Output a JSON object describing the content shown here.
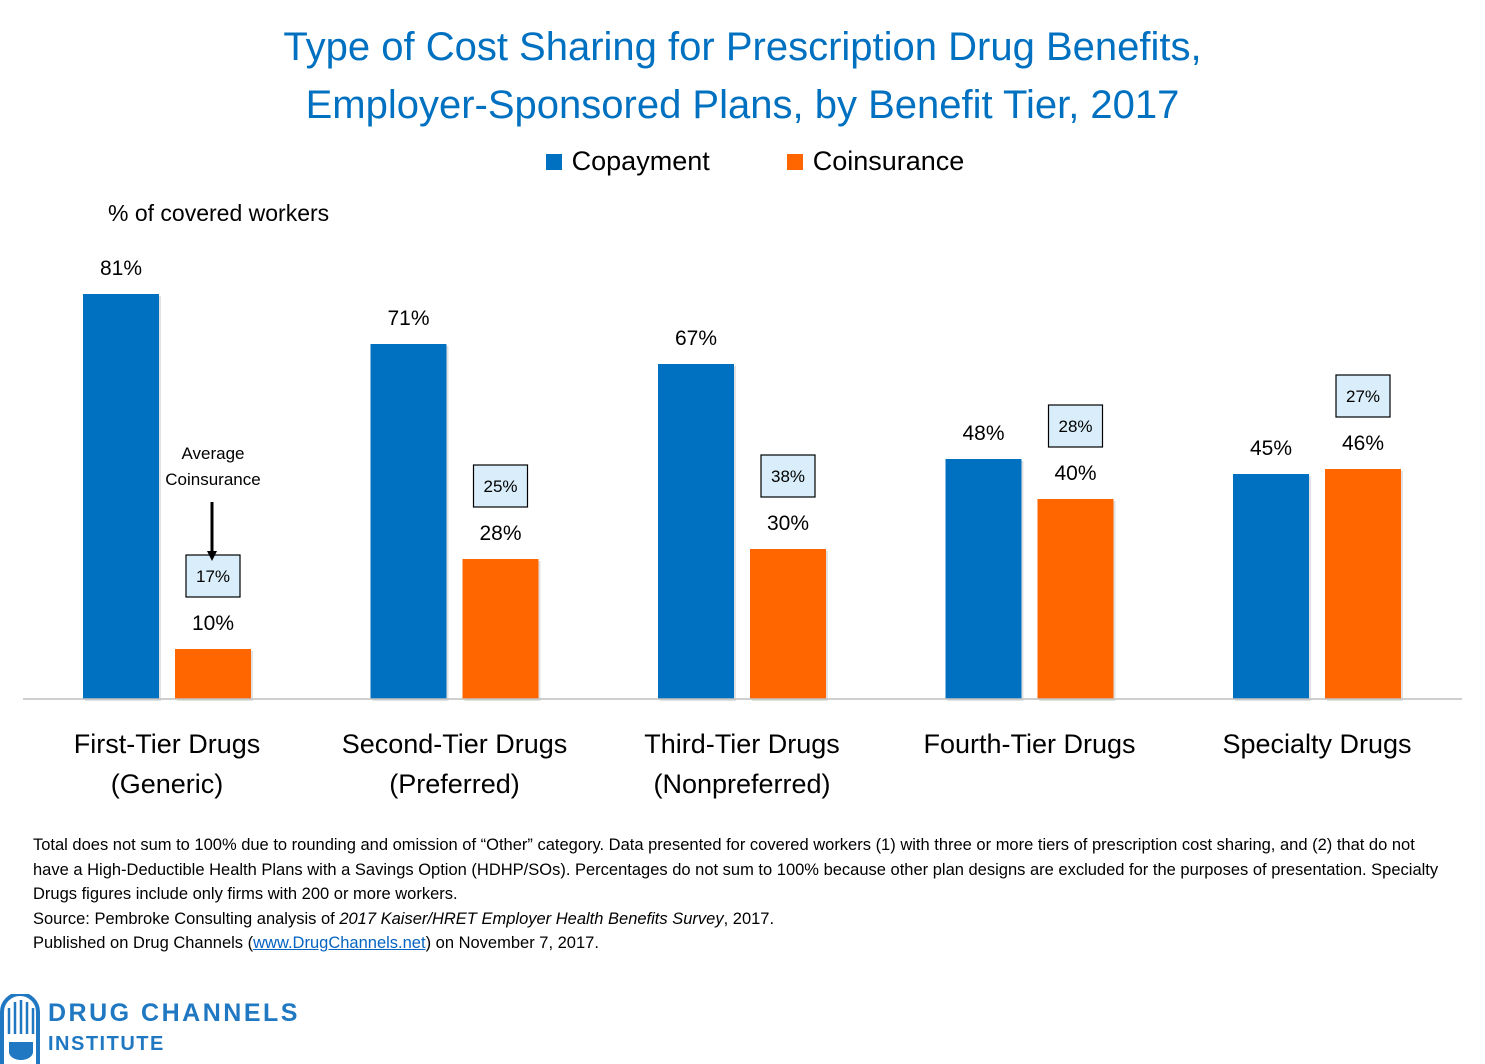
{
  "title": {
    "line1": "Type of Cost Sharing for Prescription Drug Benefits,",
    "line2": "Employer-Sponsored Plans, by Benefit Tier, 2017"
  },
  "colors": {
    "copayment": "#0070C0",
    "coinsurance": "#FF6600",
    "callout_bg": "#D9EEFA",
    "title": "#0070C0"
  },
  "y_axis_label": "% of covered workers",
  "annotation": {
    "line1": "Average",
    "line2": "Coinsurance"
  },
  "chart_data": {
    "type": "bar",
    "title": "Type of Cost Sharing for Prescription Drug Benefits, Employer-Sponsored Plans, by Benefit Tier, 2017",
    "ylabel": "% of covered workers",
    "ylim": [
      0,
      100
    ],
    "grid": false,
    "legend_position": "top-center",
    "categories": [
      [
        "First-Tier Drugs",
        "(Generic)"
      ],
      [
        "Second-Tier Drugs",
        "(Preferred)"
      ],
      [
        "Third-Tier Drugs",
        "(Nonpreferred)"
      ],
      [
        "Fourth-Tier Drugs",
        ""
      ],
      [
        "Specialty Drugs",
        ""
      ]
    ],
    "series": [
      {
        "name": "Copayment",
        "values": [
          81,
          71,
          67,
          48,
          45
        ],
        "labels": [
          "81%",
          "71%",
          "67%",
          "48%",
          "45%"
        ]
      },
      {
        "name": "Coinsurance",
        "values": [
          10,
          28,
          30,
          40,
          46
        ],
        "labels": [
          "10%",
          "28%",
          "30%",
          "40%",
          "46%"
        ]
      }
    ],
    "average_coinsurance": {
      "values": [
        17,
        25,
        38,
        28,
        27
      ],
      "labels": [
        "17%",
        "25%",
        "38%",
        "28%",
        "27%"
      ]
    }
  },
  "footnote": {
    "line1": "Total does not sum to 100% due to rounding and omission of “Other” category. Data presented for covered workers (1) with three or more tiers of prescription cost sharing, and (2) that do not have a High-Deductible Health Plans with a Savings Option (HDHP/SOs). Percentages do not sum to 100% because other plan designs are excluded for the purposes of presentation.  Specialty Drugs figures include only firms with 200 or more workers.",
    "source_prefix": "Source: Pembroke Consulting analysis of ",
    "source_title": "2017 Kaiser/HRET Employer Health Benefits Survey",
    "source_suffix": ", 2017.",
    "published_prefix": "Published on Drug Channels (",
    "published_link": "www.DrugChannels.net",
    "published_suffix": ") on November 7, 2017."
  },
  "logo": {
    "name": "DRUG CHANNELS",
    "sub": "INSTITUTE"
  }
}
